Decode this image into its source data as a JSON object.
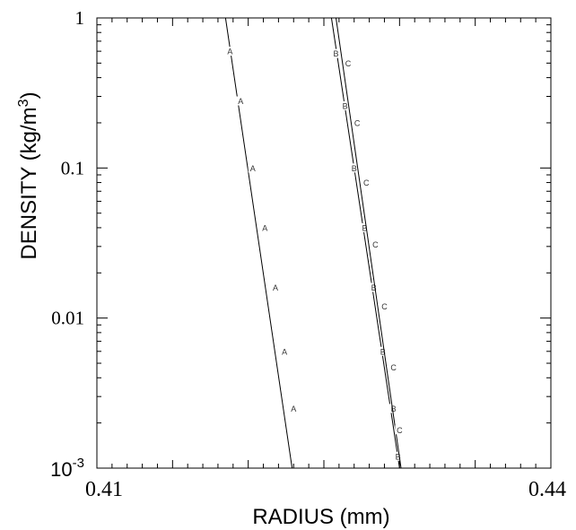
{
  "chart_data": {
    "type": "line",
    "title": "",
    "xlabel": "RADIUS (mm)",
    "ylabel": "DENSITY (kg/m",
    "ylabel_superscript": "3",
    "ylabel_close": ")",
    "xlim": [
      0.41,
      0.44
    ],
    "ylim": [
      0.001,
      1
    ],
    "yscale": "log",
    "grid": false,
    "legend": "none",
    "x_tick_labels": [
      "0.41",
      "0.44"
    ],
    "y_tick_labels": [
      {
        "value": 1,
        "label": "1"
      },
      {
        "value": 0.1,
        "label": "0.1"
      },
      {
        "value": 0.01,
        "label": "0.01"
      }
    ],
    "y_tick_bottom": {
      "value": 0.001,
      "base": "10",
      "exponent": "-3"
    },
    "series": [
      {
        "name": "A",
        "color": "#000000",
        "line": [
          [
            0.4185,
            1.0
          ],
          [
            0.4229,
            0.001
          ]
        ],
        "markers": [
          [
            0.4188,
            0.6
          ],
          [
            0.4195,
            0.28
          ],
          [
            0.4203,
            0.1
          ],
          [
            0.4211,
            0.04
          ],
          [
            0.4218,
            0.016
          ],
          [
            0.4224,
            0.006
          ],
          [
            0.423,
            0.0025
          ]
        ]
      },
      {
        "name": "B",
        "color": "#000000",
        "line": [
          [
            0.4255,
            1.0
          ],
          [
            0.43,
            0.001
          ]
        ],
        "markers": [
          [
            0.4258,
            0.58
          ],
          [
            0.4264,
            0.26
          ],
          [
            0.427,
            0.1
          ],
          [
            0.4277,
            0.04
          ],
          [
            0.4283,
            0.016
          ],
          [
            0.4289,
            0.006
          ],
          [
            0.4296,
            0.0025
          ],
          [
            0.4299,
            0.0012
          ]
        ]
      },
      {
        "name": "C",
        "color": "#000000",
        "line": [
          [
            0.4258,
            1.0
          ],
          [
            0.4301,
            0.001
          ]
        ],
        "markers": [
          [
            0.4266,
            0.5
          ],
          [
            0.4272,
            0.2
          ],
          [
            0.4278,
            0.08
          ],
          [
            0.4284,
            0.031
          ],
          [
            0.429,
            0.012
          ],
          [
            0.4296,
            0.0047
          ],
          [
            0.43,
            0.0018
          ]
        ]
      }
    ]
  }
}
